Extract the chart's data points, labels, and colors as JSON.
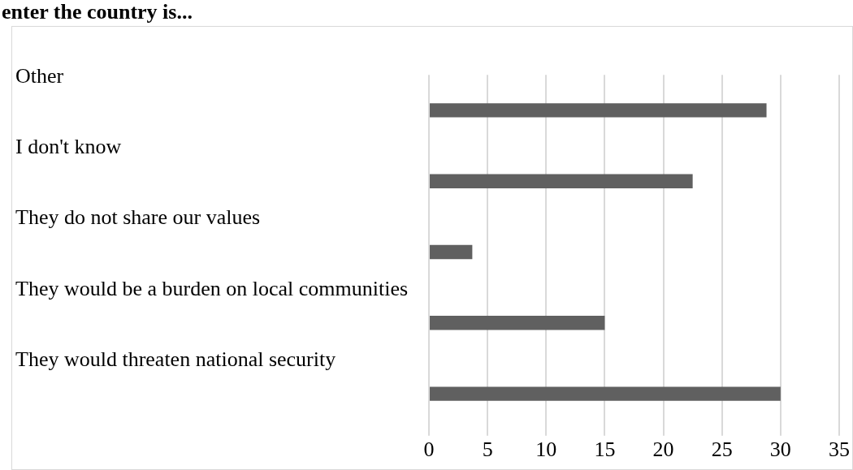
{
  "chart_data": {
    "type": "bar",
    "orientation": "horizontal",
    "title": "enter the country is...",
    "categories": [
      "Other",
      "I don't know",
      "They do not share our values",
      "They would be a burden on local communities",
      "They would threaten national security"
    ],
    "values": [
      28.8,
      22.5,
      3.7,
      15,
      30
    ],
    "color": "#606060",
    "xlim": [
      0,
      35
    ],
    "xticks": [
      0,
      5,
      10,
      15,
      20,
      25,
      30,
      35
    ],
    "grid": "x"
  }
}
